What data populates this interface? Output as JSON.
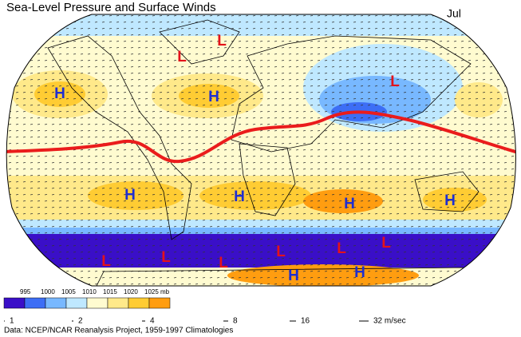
{
  "header": {
    "title": "Sea-Level Pressure and Surface Winds",
    "month": "Jul"
  },
  "markers": [
    {
      "label": "L"
    },
    {
      "label": "L"
    },
    {
      "label": "H"
    },
    {
      "label": "H"
    },
    {
      "label": "L"
    },
    {
      "label": "H"
    },
    {
      "label": "H"
    },
    {
      "label": "H"
    },
    {
      "label": "H"
    },
    {
      "label": "L"
    },
    {
      "label": "L"
    },
    {
      "label": "L"
    },
    {
      "label": "L"
    },
    {
      "label": "L"
    },
    {
      "label": "L"
    },
    {
      "label": "H"
    },
    {
      "label": "H"
    }
  ],
  "marker_colors": {
    "H": "#1f2fd0",
    "L": "#e3121a"
  },
  "pressure_legend": {
    "labels": [
      "995",
      "1000",
      "1005",
      "1010",
      "1015",
      "1020",
      "1025 mb"
    ],
    "colors": [
      "#3a0fc8",
      "#3d6ef5",
      "#78b8ff",
      "#bfe8ff",
      "#fffbd0",
      "#ffe98a",
      "#ffcc33",
      "#ff9d10"
    ]
  },
  "wind_legend": [
    "1",
    "2",
    "4",
    "8",
    "16",
    "32 m/sec"
  ],
  "source": "Data:  NCEP/NCAR Reanalysis Project, 1959-1997 Climatologies"
}
